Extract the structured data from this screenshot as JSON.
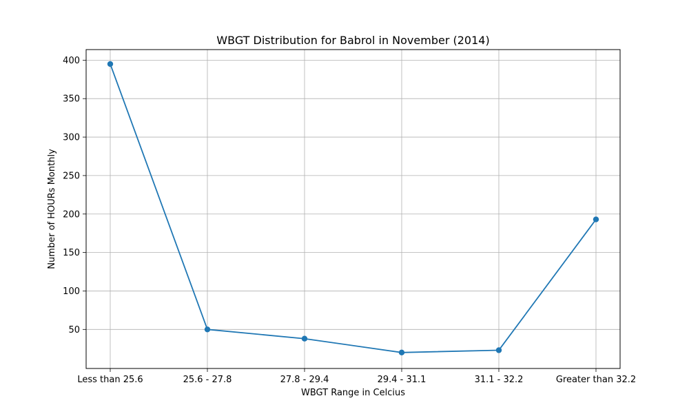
{
  "chart_data": {
    "type": "line",
    "title": "WBGT Distribution for Babrol in November (2014)",
    "xlabel": "WBGT Range in Celcius",
    "ylabel": "Number of HOURs Monthly",
    "categories": [
      "Less than 25.6",
      "25.6 - 27.8",
      "27.8 - 29.4",
      "29.4 - 31.1",
      "31.1 - 32.2",
      "Greater than 32.2"
    ],
    "values": [
      395,
      50,
      38,
      20,
      23,
      193
    ],
    "ylim": [
      -0.75,
      413.75
    ],
    "yticks": [
      50,
      100,
      150,
      200,
      250,
      300,
      350,
      400
    ],
    "grid": true,
    "marker": "circle",
    "colors": {
      "line": "#1f77b4",
      "grid": "#b0b0b0",
      "axis": "#000000"
    }
  }
}
